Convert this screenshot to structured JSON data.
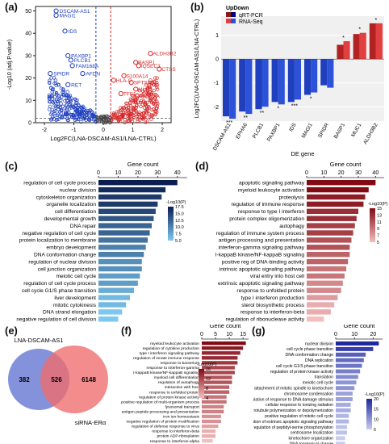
{
  "panel_labels": {
    "a": "(a)",
    "b": "(b)",
    "c": "(c)",
    "d": "(d)",
    "e": "(e)",
    "f": "(f)",
    "g": "(g)"
  },
  "colors": {
    "up": "#d62728",
    "down": "#1f3fbf",
    "grey": "#555555",
    "venn_left": "#6f7fd6",
    "venn_right": "#ef6b6b",
    "venn_mid": "#9a4f6b"
  },
  "chart_data": [
    {
      "id": "a",
      "type": "scatter",
      "xlabel": "Log2FC(LNA-DSCAM-AS1/LNA-CTRL)",
      "ylabel": "-Log10 (adj.P.value)",
      "xticks": [
        "-2",
        "-1",
        "0",
        "1",
        "2"
      ],
      "yticks": [
        "0",
        "10",
        "20",
        "30",
        "40",
        "50"
      ],
      "xlim": [
        -2.3,
        2.3
      ],
      "ylim": [
        0,
        52
      ],
      "annotations_down": [
        {
          "label": "DSCAM-AS1",
          "x": -1.6,
          "y": 50
        },
        {
          "label": "MAGI1",
          "x": -1.6,
          "y": 48
        },
        {
          "label": "IDS",
          "x": -1.3,
          "y": 41
        },
        {
          "label": "PAXBP1",
          "x": -1.2,
          "y": 30
        },
        {
          "label": "PLCB1",
          "x": -1.1,
          "y": 28
        },
        {
          "label": "FAM168A",
          "x": -1.05,
          "y": 25.5
        },
        {
          "label": "SPIDR",
          "x": -1.8,
          "y": 22
        },
        {
          "label": "AFDN",
          "x": -0.7,
          "y": 22
        },
        {
          "label": "RET",
          "x": -1.2,
          "y": 17
        }
      ],
      "annotations_up": [
        {
          "label": "ALDH3B2",
          "x": 1.6,
          "y": 31
        },
        {
          "label": "BASP1",
          "x": 1.1,
          "y": 27
        },
        {
          "label": "IQSEC3",
          "x": 1.2,
          "y": 25.5
        },
        {
          "label": "CTSS",
          "x": 1.9,
          "y": 24
        },
        {
          "label": "S100A14",
          "x": 0.7,
          "y": 21
        },
        {
          "label": "HLA-C",
          "x": 0.35,
          "y": 19
        },
        {
          "label": "SPTSSB",
          "x": 0.95,
          "y": 18
        },
        {
          "label": "MUC1",
          "x": 1.1,
          "y": 15
        },
        {
          "label": "TFF1",
          "x": 0.6,
          "y": 13
        },
        {
          "label": "FAM38A",
          "x": 1.15,
          "y": 12
        }
      ]
    },
    {
      "id": "b",
      "type": "bar",
      "legend_title": "UpDown",
      "series": [
        {
          "name": "qRT-PCR",
          "color": "#8b1a1a"
        },
        {
          "name": "RNA-Seq",
          "color": "#1f3fbf"
        }
      ],
      "ylabel": "Log2FC(LNA-DSCAM-AS1/LNA-CTRL)",
      "xlabel": "DE gene",
      "ylim": [
        -2.6,
        1.8
      ],
      "yticks": [
        "-2",
        "-1",
        "0",
        "1"
      ],
      "categories": [
        "DSCAM-AS1",
        "EPHA6",
        "PLCB1",
        "PAXBP1",
        "IDS",
        "MAGI1",
        "SPIDR",
        "BASP1",
        "MUC1",
        "ALDH3B2"
      ],
      "values_qpcr": [
        -2.4,
        -2.2,
        -2.1,
        -1.8,
        -1.8,
        -1.5,
        -1.1,
        0.6,
        1.05,
        1.5
      ],
      "values_rnaseq": [
        -2.5,
        -2.3,
        -2.0,
        -1.9,
        -1.7,
        -1.4,
        -1.2,
        0.75,
        1.1,
        1.5
      ],
      "stars": [
        "***",
        "**",
        "**",
        "*",
        "***",
        "*",
        "",
        "*",
        "*",
        "*"
      ]
    },
    {
      "id": "c",
      "type": "bar",
      "orientation": "horizontal",
      "title": "Gene count",
      "xticks": [
        "0",
        "10",
        "20",
        "30",
        "40"
      ],
      "xmax": 45,
      "legend_title": "-Log10(P)",
      "legend_ticks": [
        "5.0",
        "7.5",
        "10.0",
        "12.5",
        "15.0",
        "17.5"
      ],
      "categories": [
        "regulation of cell cycle process",
        "nuclear division",
        "cytoskeleton organization",
        "organelle localization",
        "cell differentiation",
        "developmental growth",
        "DNA repair",
        "negative regulation of cell cycle",
        "protein localization to membrane",
        "embryo development",
        "DNA conformation change",
        "regulation of nuclear division",
        "cell junction organization",
        "meiotic cell cycle",
        "regulation of cell cycle process",
        "cell cycle G1/S phase transition",
        "liver development",
        "mitotic cytokinesis",
        "DNA strand elongation",
        "negative regulation of cell division"
      ],
      "values": [
        40,
        34,
        32,
        30,
        29,
        28,
        27,
        26,
        25,
        24,
        23,
        22,
        22,
        21,
        20,
        18,
        16,
        14,
        12,
        10
      ],
      "pvals": [
        17,
        16,
        15,
        15,
        14,
        13,
        12,
        12,
        11,
        10,
        10,
        9,
        9,
        8,
        8,
        7,
        6,
        6,
        5,
        5
      ]
    },
    {
      "id": "d",
      "type": "bar",
      "orientation": "horizontal",
      "title": "Gene count",
      "xticks": [
        "0",
        "10",
        "20",
        "30",
        "40"
      ],
      "xmax": 45,
      "legend_title": "-Log10(P)",
      "legend_ticks": [
        "5",
        "7",
        "9",
        "11",
        "13",
        "15"
      ],
      "categories": [
        "apoptotic signaling pathway",
        "myeloid leukocyte activation",
        "proteolysis",
        "regulation of immune response",
        "response to type I interferon",
        "protein complex oligomerization",
        "autophagy",
        "regulation of immune system process",
        "antigen processing and presentation",
        "interferon-gamma signaling pathway",
        "I-kappaB kinase/NF-kappaB signaling",
        "positive reg of DNA-binding activity",
        "intrinsic apoptotic signaling pathway",
        "viral entry into host cell",
        "extrinsic apoptotic signaling pathway",
        "response to unfolded protein",
        "type I interferon production",
        "sterol biosynthetic process",
        "response to interferon-beta",
        "regulation of ribonuclease activity"
      ],
      "values": [
        40,
        36,
        34,
        33,
        30,
        29,
        28,
        27,
        26,
        25,
        25,
        24,
        23,
        22,
        21,
        20,
        18,
        16,
        14,
        10
      ],
      "pvals": [
        15,
        15,
        14,
        14,
        13,
        13,
        12,
        12,
        11,
        11,
        10,
        10,
        9,
        9,
        8,
        8,
        7,
        6,
        6,
        5
      ]
    },
    {
      "id": "e",
      "type": "venn",
      "left_label": "LNA-DSCAM-AS1",
      "right_label": "siRNA-ERα",
      "left_only": "382",
      "both": "526",
      "right_only": "6148"
    },
    {
      "id": "f",
      "type": "bar",
      "orientation": "horizontal",
      "title": "Gene count",
      "xticks": [
        "0",
        "5",
        "10",
        "15"
      ],
      "xmax": 17,
      "legend_title": "-Log10(P)",
      "legend_ticks": [
        "4",
        "8",
        "12",
        "16"
      ],
      "categories": [
        "myeloid leukocyte activation",
        "regulation of cytokine production",
        "type I interferon signaling pathway",
        "regulation of innate immune response",
        "response to bacterium",
        "response to interferon-gamma",
        "I-kappaB kinase/NF-kappaB signaling",
        "myeloid cell differentiation",
        "regulation of autophagy",
        "interaction with host",
        "response to unfolded protein",
        "regulation of protein kinase activity",
        "positive regulation of multi-organism process",
        "lysosomal transport",
        "antigen peptide processing and presentation",
        "iron ion homeostasis",
        "negative regulation of protein modification",
        "regulation of defense response to virus",
        "response to interferon-beta",
        "protein ADP-ribosylation",
        "response to interferon-alpha"
      ],
      "values": [
        16,
        15,
        14,
        13,
        13,
        12,
        12,
        11,
        11,
        10,
        10,
        9,
        9,
        8,
        8,
        7,
        7,
        6,
        5,
        5,
        4
      ],
      "pvals": [
        16,
        15,
        14,
        14,
        13,
        12,
        12,
        11,
        11,
        10,
        10,
        9,
        9,
        8,
        8,
        7,
        7,
        6,
        5,
        5,
        4
      ]
    },
    {
      "id": "g",
      "type": "bar",
      "orientation": "horizontal",
      "title": "Gene count",
      "xticks": [
        "0",
        "10",
        "20"
      ],
      "xmax": 25,
      "legend_title": "-Log10(P)",
      "legend_ticks": [
        "5",
        "10",
        "15",
        "20"
      ],
      "categories": [
        "nuclear division",
        "cell cycle phase transition",
        "DNA conformation change",
        "DNA replication",
        "cell cycle G1/S phase transition",
        "regulation of protein kinase activity",
        "translation",
        "meiotic cell cycle",
        "attachment of mitotic spindle to kinetochore",
        "chromosome condensation",
        "regulation of response to DNA damage stimulus",
        "cellular response to ionizing radiation",
        "microtubule polymerization or depolymerization",
        "positive regulation of mitotic cell cycle",
        "regulation of extrinsic apoptotic signaling pathway",
        "positive regulation of peptidyl-serine phosphorylation",
        "centrosome localization",
        "kinetochore organization",
        "DNA topological change"
      ],
      "values": [
        23,
        20,
        16,
        15,
        14,
        13,
        12,
        11,
        10,
        9,
        9,
        8,
        8,
        7,
        7,
        6,
        6,
        5,
        5
      ],
      "pvals": [
        20,
        18,
        15,
        14,
        13,
        12,
        11,
        10,
        10,
        9,
        9,
        8,
        8,
        7,
        7,
        6,
        6,
        5,
        5
      ]
    }
  ]
}
